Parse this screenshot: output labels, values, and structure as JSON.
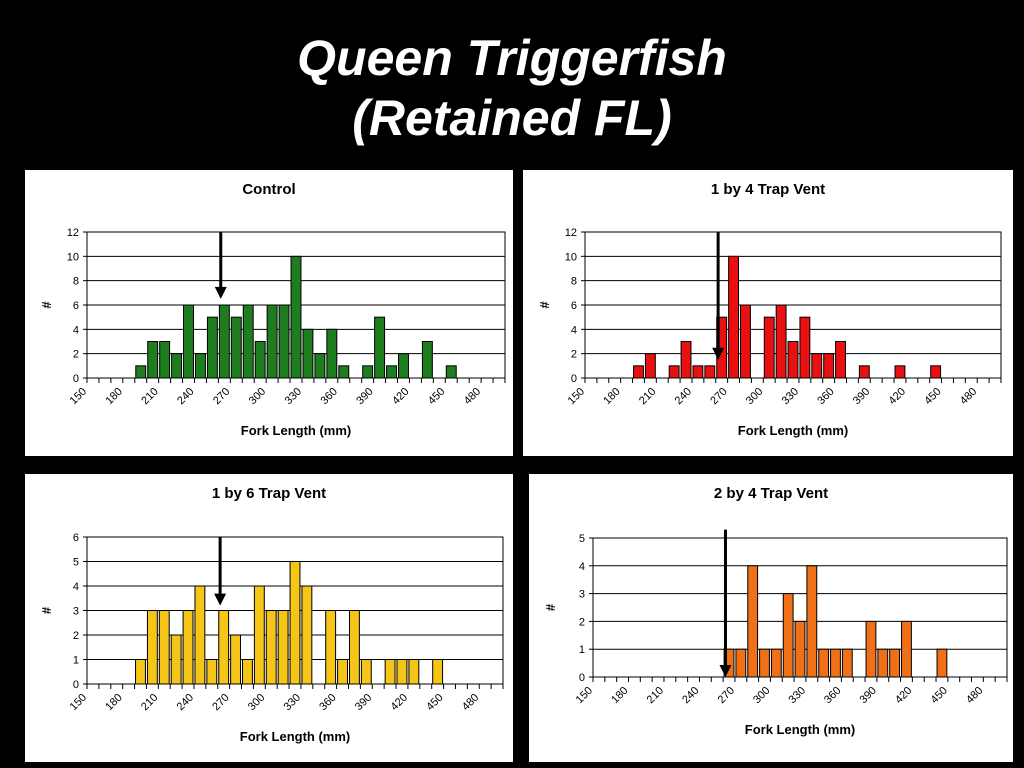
{
  "page": {
    "title_line1": "Queen Triggerfish",
    "title_line2": "(Retained FL)"
  },
  "colors": {
    "background": "#000000",
    "panel": "#ffffff",
    "title": "#ffffff",
    "arrow": "#000000"
  },
  "chart_data": [
    {
      "type": "bar",
      "title": "Control",
      "xlabel": "Fork Length (mm)",
      "ylabel": "#",
      "ylim": [
        0,
        12
      ],
      "ytick_step": 2,
      "x_tick_labels": [
        "150",
        "180",
        "210",
        "240",
        "270",
        "300",
        "330",
        "360",
        "390",
        "420",
        "450",
        "480"
      ],
      "bin_width": 10,
      "x": [
        150,
        160,
        170,
        180,
        190,
        200,
        210,
        220,
        230,
        240,
        250,
        260,
        270,
        280,
        290,
        300,
        310,
        320,
        330,
        340,
        350,
        360,
        370,
        380,
        390,
        400,
        410,
        420,
        430,
        440,
        450,
        460,
        470,
        480,
        490
      ],
      "values": [
        0,
        0,
        0,
        0,
        1,
        3,
        3,
        2,
        6,
        2,
        5,
        6,
        5,
        6,
        3,
        6,
        6,
        10,
        4,
        2,
        4,
        1,
        0,
        1,
        5,
        1,
        2,
        0,
        3,
        0,
        1,
        0,
        0,
        0,
        0
      ],
      "color": "#1e7d1e",
      "arrow_x": 262,
      "arrow_y_from": 12,
      "arrow_y_to": 6.5,
      "grid": true
    },
    {
      "type": "bar",
      "title": "1 by 4 Trap Vent",
      "xlabel": "Fork Length (mm)",
      "ylabel": "#",
      "ylim": [
        0,
        12
      ],
      "ytick_step": 2,
      "x_tick_labels": [
        "150",
        "180",
        "210",
        "240",
        "270",
        "300",
        "330",
        "360",
        "390",
        "420",
        "450",
        "480"
      ],
      "bin_width": 10,
      "x": [
        150,
        160,
        170,
        180,
        190,
        200,
        210,
        220,
        230,
        240,
        250,
        260,
        270,
        280,
        290,
        300,
        310,
        320,
        330,
        340,
        350,
        360,
        370,
        380,
        390,
        400,
        410,
        420,
        430,
        440,
        450,
        460,
        470,
        480,
        490
      ],
      "values": [
        0,
        0,
        0,
        0,
        1,
        2,
        0,
        1,
        3,
        1,
        1,
        5,
        10,
        6,
        0,
        5,
        6,
        3,
        5,
        2,
        2,
        3,
        0,
        1,
        0,
        0,
        1,
        0,
        0,
        1,
        0,
        0,
        0,
        0,
        0
      ],
      "color": "#e81010",
      "arrow_x": 262,
      "arrow_y_from": 12,
      "arrow_y_to": 1.5,
      "grid": true
    },
    {
      "type": "bar",
      "title": "1 by 6 Trap Vent",
      "xlabel": "Fork Length (mm)",
      "ylabel": "#",
      "ylim": [
        0,
        6
      ],
      "ytick_step": 1,
      "x_tick_labels": [
        "150",
        "180",
        "210",
        "240",
        "270",
        "300",
        "330",
        "360",
        "390",
        "420",
        "450",
        "480"
      ],
      "bin_width": 10,
      "x": [
        150,
        160,
        170,
        180,
        190,
        200,
        210,
        220,
        230,
        240,
        250,
        260,
        270,
        280,
        290,
        300,
        310,
        320,
        330,
        340,
        350,
        360,
        370,
        380,
        390,
        400,
        410,
        420,
        430,
        440,
        450,
        460,
        470,
        480,
        490
      ],
      "values": [
        0,
        0,
        0,
        0,
        1,
        3,
        3,
        2,
        3,
        4,
        1,
        3,
        2,
        1,
        4,
        3,
        3,
        5,
        4,
        0,
        3,
        1,
        3,
        1,
        0,
        1,
        1,
        1,
        0,
        1,
        0,
        0,
        0,
        0,
        0
      ],
      "color": "#f5c518",
      "arrow_x": 262,
      "arrow_y_from": 6,
      "arrow_y_to": 3.2,
      "grid": true
    },
    {
      "type": "bar",
      "title": "2 by 4 Trap Vent",
      "xlabel": "Fork Length (mm)",
      "ylabel": "#",
      "ylim": [
        0,
        5
      ],
      "ytick_step": 1,
      "x_tick_labels": [
        "150",
        "180",
        "210",
        "240",
        "270",
        "300",
        "330",
        "360",
        "390",
        "420",
        "450",
        "480"
      ],
      "bin_width": 10,
      "x": [
        150,
        160,
        170,
        180,
        190,
        200,
        210,
        220,
        230,
        240,
        250,
        260,
        270,
        280,
        290,
        300,
        310,
        320,
        330,
        340,
        350,
        360,
        370,
        380,
        390,
        400,
        410,
        420,
        430,
        440,
        450,
        460,
        470,
        480,
        490
      ],
      "values": [
        0,
        0,
        0,
        0,
        0,
        0,
        0,
        0,
        0,
        0,
        0,
        1,
        1,
        4,
        1,
        1,
        3,
        2,
        4,
        1,
        1,
        1,
        0,
        2,
        1,
        1,
        2,
        0,
        0,
        1,
        0,
        0,
        0,
        0,
        0
      ],
      "color": "#f07018",
      "arrow_x": 262,
      "arrow_y_from": 5.3,
      "arrow_y_to": 0,
      "grid": true
    }
  ]
}
